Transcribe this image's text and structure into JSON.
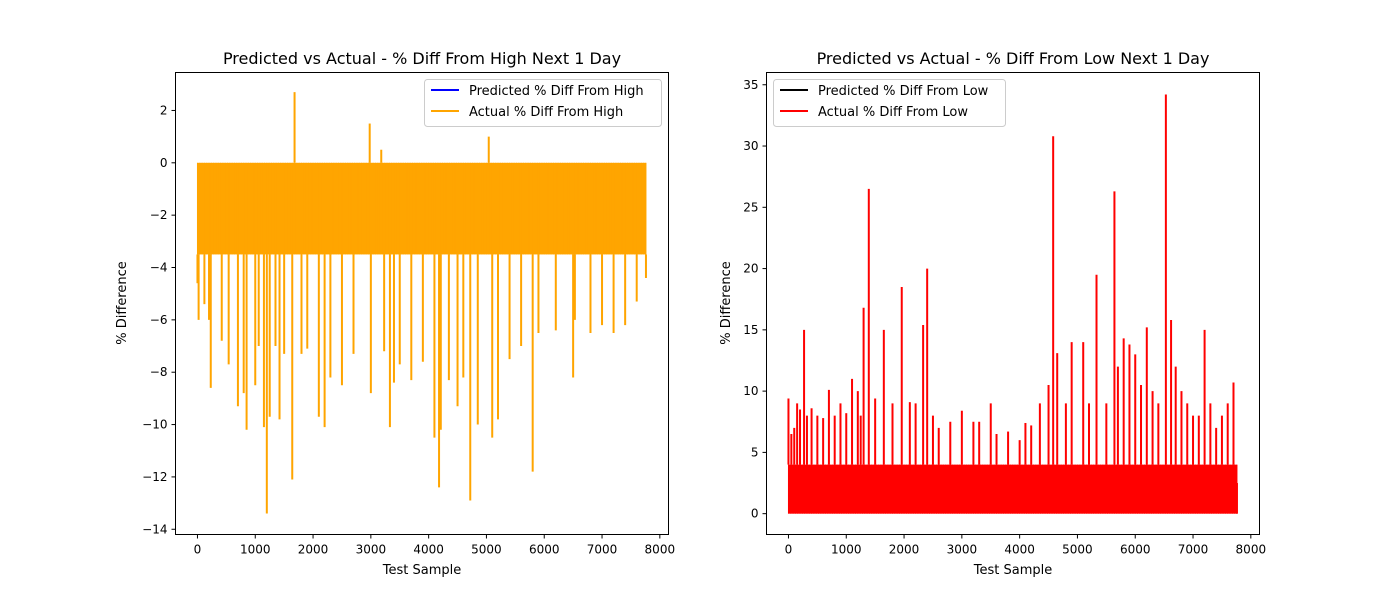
{
  "chart_data": [
    {
      "type": "line",
      "title": "Predicted vs Actual - % Diff From High Next 1 Day",
      "xlabel": "Test Sample",
      "ylabel": "% Difference",
      "xlim": [
        -380,
        8150
      ],
      "ylim": [
        -14.2,
        3.45
      ],
      "xticks": [
        0,
        1000,
        2000,
        3000,
        4000,
        5000,
        6000,
        7000,
        8000
      ],
      "yticks": [
        -14,
        -12,
        -10,
        -8,
        -6,
        -4,
        -2,
        0,
        2
      ],
      "grid": false,
      "legend_position": "upper right",
      "series": [
        {
          "name": "Predicted % Diff From High",
          "color": "#0000ff",
          "note_hidden": true,
          "x": [
            0,
            7760
          ],
          "y": [
            -1.5,
            -1.5
          ]
        },
        {
          "name": "Actual % Diff From High",
          "color": "#ffa500",
          "band": {
            "x_start": 0,
            "x_end": 7760,
            "y_top": 0.0,
            "y_bottom": -3.5
          },
          "spikes_x": [
            0,
            20,
            120,
            200,
            230,
            420,
            540,
            700,
            800,
            850,
            1000,
            1060,
            1150,
            1200,
            1250,
            1350,
            1420,
            1500,
            1640,
            1680,
            1800,
            1900,
            2100,
            2200,
            2300,
            2500,
            2700,
            2980,
            3000,
            3180,
            3230,
            3330,
            3400,
            3500,
            3700,
            3900,
            4100,
            4180,
            4210,
            4350,
            4500,
            4600,
            4720,
            4850,
            5040,
            5100,
            5200,
            5400,
            5600,
            5800,
            5900,
            6200,
            6500,
            6530,
            6800,
            7000,
            7200,
            7400,
            7600,
            7760
          ],
          "spikes_y": [
            -4.6,
            -6.0,
            -5.4,
            -6.0,
            -8.6,
            -6.8,
            -7.7,
            -9.3,
            -8.8,
            -10.2,
            -8.5,
            -7.0,
            -10.1,
            -13.4,
            -9.7,
            -7.0,
            -9.8,
            -7.3,
            -12.1,
            2.7,
            -7.3,
            -7.1,
            -9.7,
            -10.1,
            -8.2,
            -8.5,
            -7.3,
            1.5,
            -8.8,
            0.5,
            -7.2,
            -10.1,
            -8.4,
            -7.7,
            -8.3,
            -7.6,
            -10.5,
            -12.4,
            -10.2,
            -8.3,
            -9.3,
            -8.2,
            -12.9,
            -10.0,
            1.0,
            -10.5,
            -9.8,
            -7.5,
            -7.0,
            -11.8,
            -6.5,
            -6.4,
            -8.2,
            -6.0,
            -6.5,
            -6.2,
            -6.5,
            -6.2,
            -5.3,
            -4.4
          ]
        }
      ]
    },
    {
      "type": "line",
      "title": "Predicted vs Actual - % Diff From Low Next 1 Day",
      "xlabel": "Test Sample",
      "ylabel": "% Difference",
      "xlim": [
        -380,
        8150
      ],
      "ylim": [
        -1.7,
        36.0
      ],
      "xticks": [
        0,
        1000,
        2000,
        3000,
        4000,
        5000,
        6000,
        7000,
        8000
      ],
      "yticks": [
        0,
        5,
        10,
        15,
        20,
        25,
        30,
        35
      ],
      "grid": false,
      "legend_position": "upper left",
      "series": [
        {
          "name": "Predicted % Diff From Low",
          "color": "#000000",
          "note_hidden": true,
          "x": [
            0,
            7760
          ],
          "y": [
            1.5,
            1.5
          ]
        },
        {
          "name": "Actual % Diff From Low",
          "color": "#ff0000",
          "band": {
            "x_start": 0,
            "x_end": 7760,
            "y_top": 4.0,
            "y_bottom": 0.0
          },
          "spikes_x": [
            0,
            50,
            100,
            150,
            200,
            270,
            320,
            400,
            500,
            600,
            700,
            800,
            900,
            1000,
            1100,
            1200,
            1250,
            1300,
            1390,
            1500,
            1650,
            1800,
            1960,
            2100,
            2200,
            2330,
            2400,
            2500,
            2600,
            2800,
            3000,
            3200,
            3300,
            3500,
            3600,
            3800,
            4000,
            4100,
            4200,
            4350,
            4500,
            4580,
            4650,
            4800,
            4900,
            5100,
            5200,
            5330,
            5500,
            5640,
            5700,
            5800,
            5900,
            6000,
            6100,
            6200,
            6300,
            6400,
            6530,
            6620,
            6700,
            6800,
            6900,
            7000,
            7100,
            7200,
            7300,
            7400,
            7500,
            7600,
            7700,
            7760
          ],
          "spikes_y": [
            9.4,
            6.5,
            7.0,
            9.0,
            8.5,
            15.0,
            8.0,
            8.6,
            8.0,
            7.8,
            10.1,
            8.0,
            9.0,
            8.2,
            11.0,
            10.0,
            8.0,
            16.8,
            26.5,
            9.4,
            15.0,
            9.0,
            18.5,
            9.1,
            9.0,
            15.4,
            20.0,
            8.0,
            7.0,
            7.5,
            8.4,
            7.5,
            7.5,
            9.0,
            6.5,
            6.7,
            6.0,
            7.4,
            7.2,
            9.0,
            10.5,
            30.8,
            13.1,
            9.0,
            14.0,
            14.0,
            9.0,
            19.5,
            9.0,
            26.3,
            12.0,
            14.3,
            13.8,
            13.0,
            10.5,
            15.2,
            10.0,
            9.0,
            34.2,
            15.8,
            12.0,
            10.0,
            9.0,
            8.0,
            8.0,
            15.0,
            9.0,
            7.0,
            8.0,
            9.0,
            10.7,
            2.5
          ]
        }
      ]
    }
  ]
}
